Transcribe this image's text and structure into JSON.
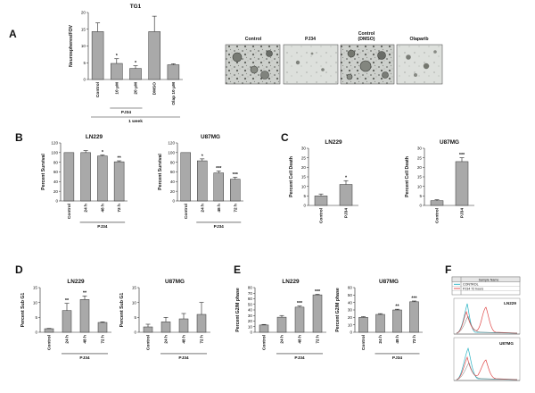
{
  "figure": {
    "panel_letters": [
      "A",
      "B",
      "C",
      "D",
      "E",
      "F"
    ]
  },
  "colors": {
    "bar": "#a9a9a9",
    "bar_stroke": "#333333",
    "axis": "#222222",
    "flow_control": "#2ab3c4",
    "flow_pj34": "#e04848",
    "flow_other": "#6f6f6f"
  },
  "micrographs": {
    "labels": [
      "Control",
      "PJ34",
      "Control\n(DMSO)",
      "Olaparib"
    ]
  },
  "flow": {
    "header": "Sample Name",
    "legend": [
      "CONTROL",
      "PJ34 72 hours"
    ],
    "titles": [
      "LN229",
      "U87MG"
    ]
  },
  "chart_data": [
    {
      "id": "A",
      "type": "bar",
      "title": "TG1",
      "ylabel": "Neurospheres/FOV",
      "ylim": [
        0,
        20
      ],
      "yticks": [
        0,
        5,
        10,
        15,
        20
      ],
      "categories": [
        "Control",
        "10 μM",
        "20 μM",
        "DMSO",
        "Olap 10 μM"
      ],
      "values": [
        14.3,
        4.8,
        3.3,
        14.3,
        4.4
      ],
      "errors": [
        2.6,
        1.4,
        0.8,
        4.6,
        0.3
      ],
      "annotations": [
        "",
        "*",
        "*",
        "",
        ""
      ],
      "groups": [
        {
          "label": "PJ34",
          "from": 1,
          "to": 2
        }
      ],
      "footer": "1 week"
    },
    {
      "id": "B1",
      "type": "bar",
      "title": "LN229",
      "ylabel": "Percent Survival",
      "ylim": [
        0,
        120
      ],
      "yticks": [
        0,
        20,
        40,
        60,
        80,
        100,
        120
      ],
      "categories": [
        "Control",
        "24 h",
        "48 h",
        "72 h"
      ],
      "values": [
        100,
        100,
        93,
        81
      ],
      "errors": [
        0,
        4,
        2,
        2
      ],
      "annotations": [
        "",
        "",
        "*",
        "**"
      ],
      "groups": [
        {
          "label": "PJ34",
          "from": 1,
          "to": 3
        }
      ]
    },
    {
      "id": "B2",
      "type": "bar",
      "title": "U87MG",
      "ylabel": "Percent Survival",
      "ylim": [
        0,
        120
      ],
      "yticks": [
        0,
        20,
        40,
        60,
        80,
        100,
        120
      ],
      "categories": [
        "Control",
        "24 h",
        "48 h",
        "72 h"
      ],
      "values": [
        100,
        83,
        58,
        45
      ],
      "errors": [
        0,
        4,
        4,
        4
      ],
      "annotations": [
        "",
        "*",
        "***",
        "***"
      ],
      "groups": [
        {
          "label": "PJ34",
          "from": 1,
          "to": 3
        }
      ]
    },
    {
      "id": "C1",
      "type": "bar",
      "title": "LN229",
      "ylabel": "Percent Cell Death",
      "ylim": [
        0,
        30
      ],
      "yticks": [
        0,
        5,
        10,
        15,
        20,
        25,
        30
      ],
      "categories": [
        "Control",
        "PJ34"
      ],
      "values": [
        5,
        11
      ],
      "errors": [
        1,
        2
      ],
      "annotations": [
        "",
        "*"
      ],
      "groups": []
    },
    {
      "id": "C2",
      "type": "bar",
      "title": "U87MG",
      "ylabel": "Percent Cell Death",
      "ylim": [
        0,
        30
      ],
      "yticks": [
        0,
        5,
        10,
        15,
        20,
        25,
        30
      ],
      "categories": [
        "Control",
        "PJ34"
      ],
      "values": [
        2.5,
        23
      ],
      "errors": [
        0.5,
        2
      ],
      "annotations": [
        "",
        "***"
      ],
      "groups": []
    },
    {
      "id": "D1",
      "type": "bar",
      "title": "LN229",
      "ylabel": "Percent Sub G1",
      "ylim": [
        0,
        15
      ],
      "yticks": [
        0,
        5,
        10,
        15
      ],
      "categories": [
        "Control",
        "24 h",
        "48 h",
        "72 h"
      ],
      "values": [
        1.2,
        7.3,
        11.0,
        3.3
      ],
      "errors": [
        0.1,
        2.4,
        1.2,
        0.2
      ],
      "annotations": [
        "",
        "**",
        "**",
        ""
      ],
      "groups": [
        {
          "label": "PJ34",
          "from": 1,
          "to": 3
        }
      ]
    },
    {
      "id": "D2",
      "type": "bar",
      "title": "U87MG",
      "ylabel": "Percent Sub G1",
      "ylim": [
        0,
        15
      ],
      "yticks": [
        0,
        5,
        10,
        15
      ],
      "categories": [
        "Control",
        "24 h",
        "48 h",
        "72 h"
      ],
      "values": [
        1.8,
        3.5,
        4.5,
        6.0
      ],
      "errors": [
        0.9,
        1.5,
        1.8,
        4.0
      ],
      "annotations": [
        "",
        "",
        "",
        ""
      ],
      "groups": [
        {
          "label": "PJ34",
          "from": 1,
          "to": 3
        }
      ]
    },
    {
      "id": "E1",
      "type": "bar",
      "title": "LN229",
      "ylabel": "Percent G2/M phase",
      "ylim": [
        0,
        80
      ],
      "yticks": [
        0,
        10,
        20,
        30,
        40,
        50,
        60,
        70,
        80
      ],
      "categories": [
        "Control",
        "24 h",
        "48 h",
        "72 h"
      ],
      "values": [
        13,
        27,
        45,
        67
      ],
      "errors": [
        1,
        3,
        2,
        1
      ],
      "annotations": [
        "",
        "",
        "***",
        "***"
      ],
      "groups": [
        {
          "label": "PJ34",
          "from": 1,
          "to": 3
        }
      ]
    },
    {
      "id": "E2",
      "type": "bar",
      "title": "U87MG",
      "ylabel": "Percent G2/M phase",
      "ylim": [
        0,
        60
      ],
      "yticks": [
        0,
        10,
        20,
        30,
        40,
        50,
        60
      ],
      "categories": [
        "Control",
        "24 h",
        "48 h",
        "72 h"
      ],
      "values": [
        20,
        24,
        30,
        41
      ],
      "errors": [
        1,
        1,
        1,
        1
      ],
      "annotations": [
        "",
        "",
        "**",
        "***"
      ],
      "groups": [
        {
          "label": "PJ34",
          "from": 1,
          "to": 3
        }
      ]
    }
  ]
}
